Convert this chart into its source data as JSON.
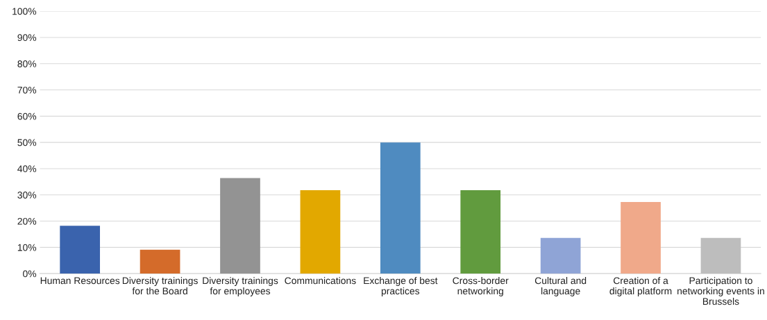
{
  "chart_data": {
    "type": "bar",
    "categories": [
      "Human Resources",
      "Diversity trainings for the Board",
      "Diversity trainings for employees",
      "Communications",
      "Exchange of best practices",
      "Cross-border networking",
      "Cultural and language",
      "Creation of a digital platform",
      "Participation to networking events in Brussels"
    ],
    "values": [
      18.2,
      9.1,
      36.4,
      31.8,
      50,
      31.8,
      13.6,
      27.3,
      13.6
    ],
    "colors": [
      "#3a63ad",
      "#d46b2a",
      "#939393",
      "#e2a800",
      "#4f8bc0",
      "#619b3e",
      "#8fa4d6",
      "#f0a98a",
      "#bdbdbd"
    ],
    "ylim": [
      0,
      100
    ],
    "yticks": [
      {
        "value": 0,
        "label": "0%"
      },
      {
        "value": 10,
        "label": "10%"
      },
      {
        "value": 20,
        "label": "20%"
      },
      {
        "value": 30,
        "label": "30%"
      },
      {
        "value": 40,
        "label": "40%"
      },
      {
        "value": 50,
        "label": "50%"
      },
      {
        "value": 60,
        "label": "60%"
      },
      {
        "value": 70,
        "label": "70%"
      },
      {
        "value": 80,
        "label": "80%"
      },
      {
        "value": 90,
        "label": "90%"
      },
      {
        "value": 100,
        "label": "100%"
      }
    ],
    "grid": "y"
  }
}
